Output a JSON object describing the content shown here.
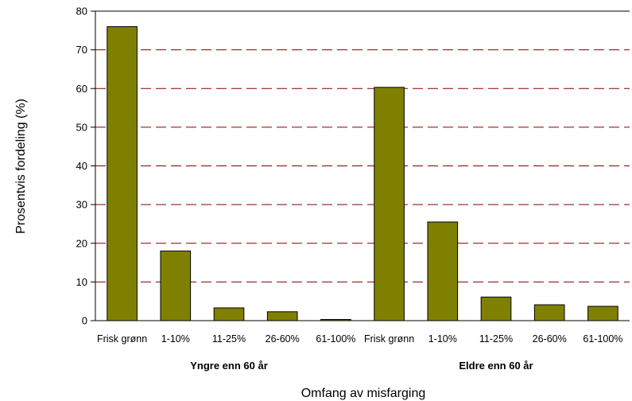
{
  "chart_data": {
    "type": "bar",
    "xlabel": "Omfang av misfarging",
    "ylabel": "Prosentvis fordeling (%)",
    "ylim": [
      0,
      80
    ],
    "yticks": [
      0,
      10,
      20,
      30,
      40,
      50,
      60,
      70,
      80
    ],
    "grid": "horizontal dashed",
    "groups": [
      {
        "label": "Yngre enn 60 år",
        "categories": [
          "Frisk grønn",
          "1-10%",
          "11-25%",
          "26-60%",
          "61-100%"
        ],
        "values": [
          76,
          18,
          3.3,
          2.3,
          0.3
        ]
      },
      {
        "label": "Eldre enn 60 år",
        "categories": [
          "Frisk grønn",
          "1-10%",
          "11-25%",
          "26-60%",
          "61-100%"
        ],
        "values": [
          60.3,
          25.5,
          6.1,
          4.1,
          3.7
        ]
      }
    ],
    "colors": {
      "bar": "#808000",
      "grid": "#800000",
      "axis": "#000000"
    }
  }
}
